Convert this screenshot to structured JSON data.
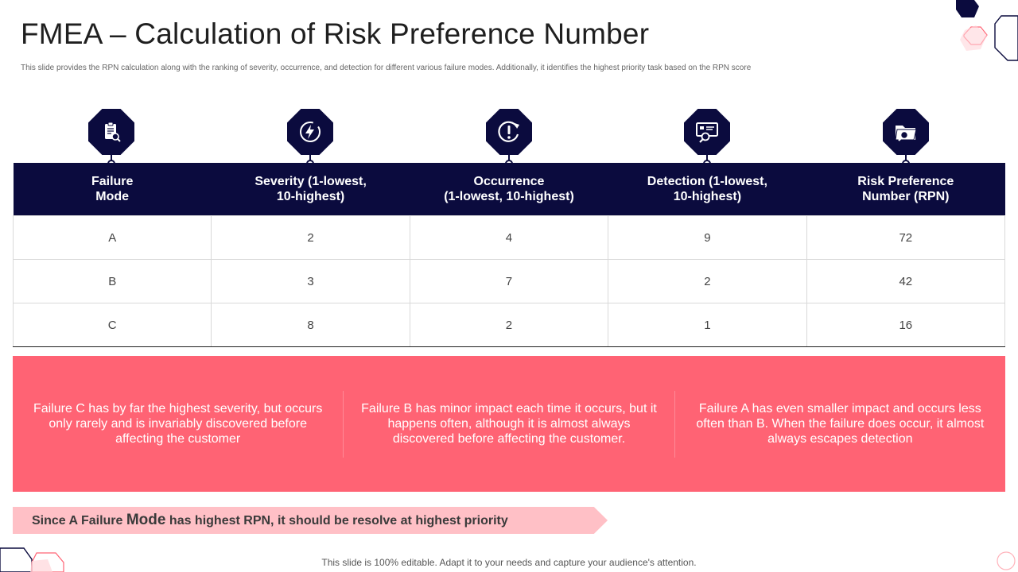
{
  "title": "FMEA – Calculation of Risk Preference Number",
  "subtitle": "This slide provides the RPN  calculation along with the ranking of severity, occurrence, and detection for different various failure modes. Additionally, it identifies the highest priority task based on the RPN  score",
  "colors": {
    "navy": "#0b0b3e",
    "pink": "#ff6374",
    "light_pink": "#ffc0c6"
  },
  "icons": [
    "clipboard-search-icon",
    "lightning-icon",
    "exclamation-refresh-icon",
    "monitor-search-icon",
    "folder-search-icon"
  ],
  "table": {
    "headers": [
      "Failure\nMode",
      "Severity (1-lowest,\n10-highest)",
      "Occurrence\n(1-lowest, 10-highest)",
      "Detection (1-lowest,\n10-highest)",
      "Risk Preference\nNumber (RPN)"
    ],
    "rows": [
      [
        "A",
        "2",
        "4",
        "9",
        "72"
      ],
      [
        "B",
        "3",
        "7",
        "2",
        "42"
      ],
      [
        "C",
        "8",
        "2",
        "1",
        "16"
      ]
    ]
  },
  "notes": [
    "Failure C has by far the highest severity, but occurs only rarely and is invariably discovered before affecting the customer",
    "Failure B has minor impact each time it occurs, but it happens often, although it is almost always discovered before affecting the customer.",
    "Failure A has even smaller impact and occurs less often than B. When the failure does occur, it almost always escapes detection"
  ],
  "banner": {
    "prefix": "Since A Failure ",
    "emphasis": "Mode",
    "suffix": " has highest RPN, it should be resolve at highest priority"
  },
  "footer": "This slide is 100% editable. Adapt it to your needs and capture your audience's attention."
}
